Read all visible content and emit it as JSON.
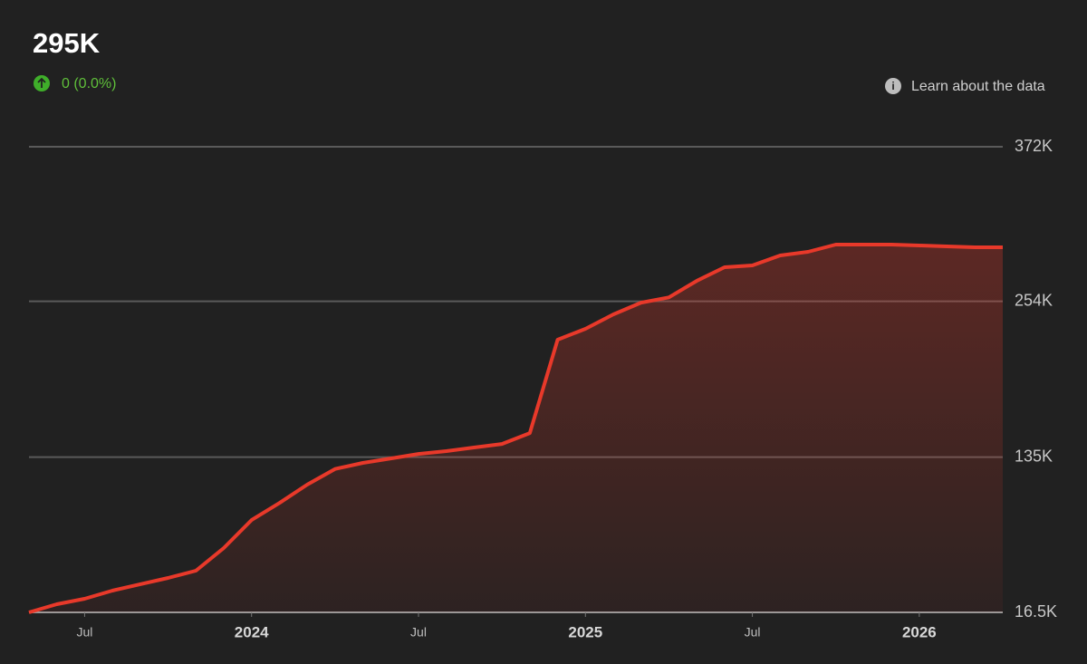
{
  "header": {
    "value": "295K",
    "change": "0 (0.0%)",
    "link": "Learn about the data"
  },
  "chart_data": {
    "type": "area",
    "x": [
      "2023-05",
      "2023-06",
      "2023-07",
      "2023-08",
      "2023-09",
      "2023-10",
      "2023-11",
      "2023-12",
      "2024-01",
      "2024-02",
      "2024-03",
      "2024-04",
      "2024-05",
      "2024-06",
      "2024-07",
      "2024-08",
      "2024-09",
      "2024-10",
      "2024-11",
      "2024-12",
      "2025-01",
      "2025-02",
      "2025-03",
      "2025-04",
      "2025-05",
      "2025-06",
      "2025-07",
      "2025-08",
      "2025-09",
      "2025-10",
      "2025-11",
      "2025-12",
      "2026-01",
      "2026-02",
      "2026-03",
      "2026-04"
    ],
    "values": [
      16500,
      22700,
      26900,
      33100,
      38000,
      42800,
      48300,
      65600,
      87000,
      100000,
      114000,
      126000,
      130600,
      134000,
      137500,
      139600,
      142400,
      145100,
      153400,
      224700,
      233000,
      244000,
      253000,
      257000,
      269600,
      280000,
      281400,
      289000,
      291800,
      297300,
      297300,
      297300,
      296600,
      295900,
      295200,
      295200
    ],
    "color": "#e8392a",
    "xlim": [
      "2023-05",
      "2026-04"
    ],
    "xticks": [
      {
        "value": "2023-07",
        "label": "Jul"
      },
      {
        "value": "2024-01",
        "label": "2024"
      },
      {
        "value": "2024-07",
        "label": "Jul"
      },
      {
        "value": "2025-01",
        "label": "2025"
      },
      {
        "value": "2025-07",
        "label": "Jul"
      },
      {
        "value": "2026-01",
        "label": "2026"
      }
    ],
    "ylim": [
      16500,
      372000
    ],
    "yticks": [
      {
        "value": 16500,
        "label": "16.5K"
      },
      {
        "value": 135000,
        "label": "135K"
      },
      {
        "value": 254000,
        "label": "254K"
      },
      {
        "value": 372000,
        "label": "372K"
      }
    ],
    "grid": true
  }
}
